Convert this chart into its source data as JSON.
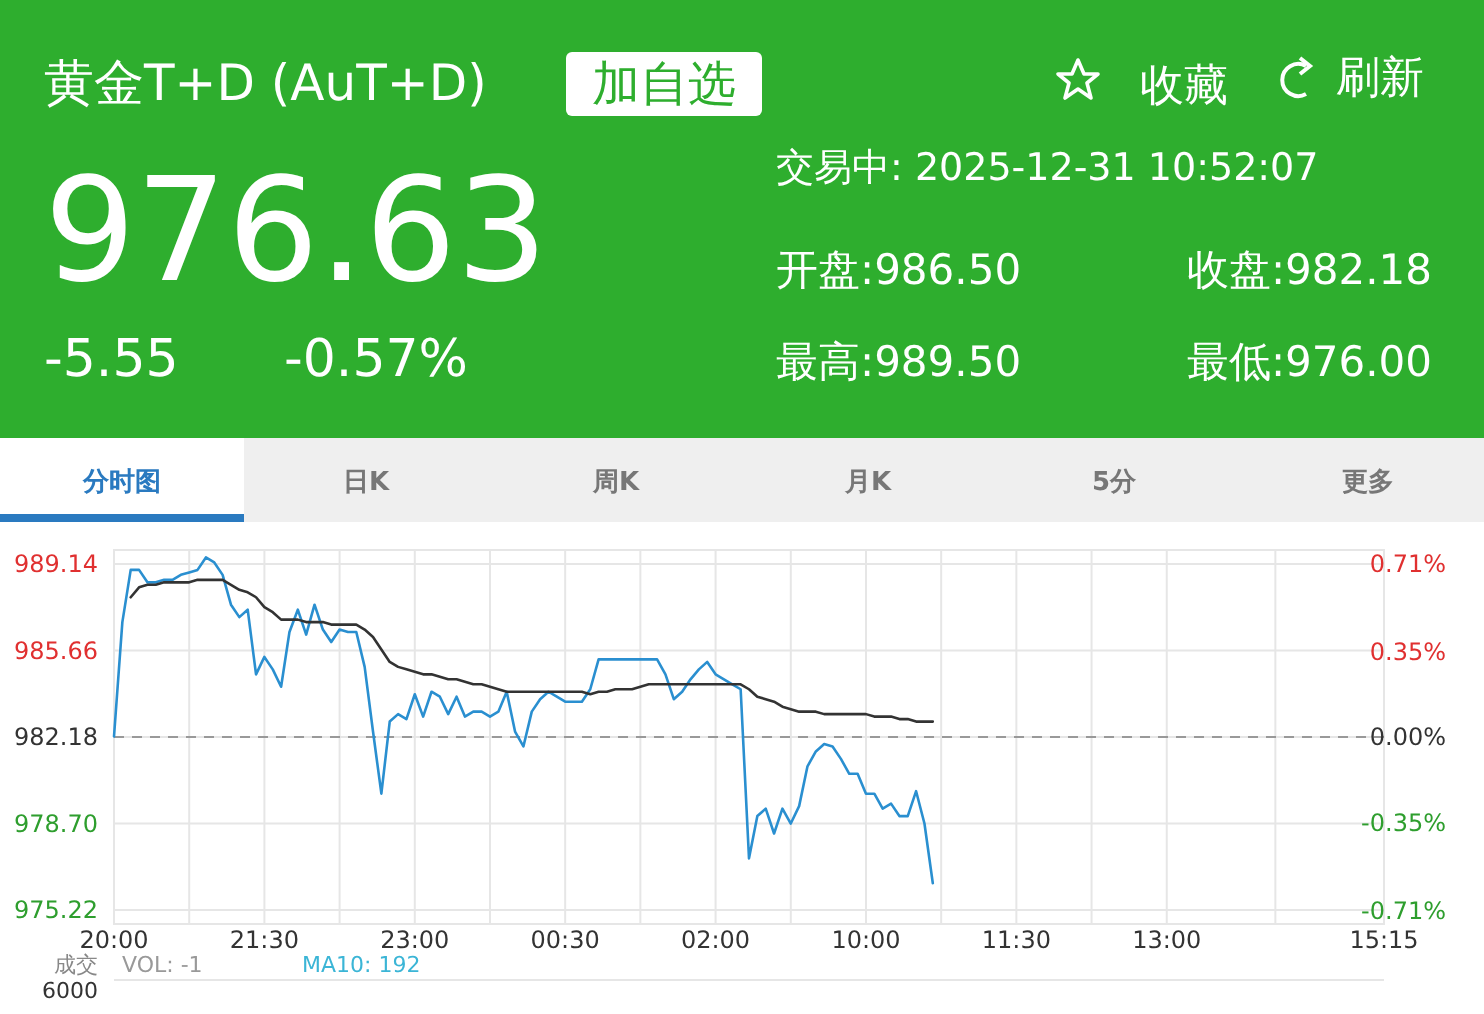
{
  "chart_data": {
    "type": "line",
    "title": "黄金T+D (AuT+D)",
    "annotations": [
      "976.63",
      "-5.55",
      "-0.57%",
      "加自选",
      "收藏",
      "刷新",
      "交易中:  2025-12-31 10:52:07",
      "开盘:986.50",
      "收盘:982.18",
      "最高:989.50",
      "最低:976.00",
      "分时图",
      "日K",
      "周K",
      "月K",
      "5分",
      "更多",
      "成交",
      "VOL: -1",
      "MA10: 192",
      "6000"
    ],
    "categories": [
      "20:00",
      null,
      null,
      null,
      null,
      null,
      null,
      null,
      null,
      null,
      null,
      null,
      null,
      null,
      null,
      null,
      null,
      null,
      "21:30",
      null,
      null,
      null,
      null,
      null,
      null,
      null,
      null,
      null,
      null,
      null,
      null,
      null,
      null,
      null,
      null,
      null,
      "23:00",
      null,
      null,
      null,
      null,
      null,
      null,
      null,
      null,
      null,
      null,
      null,
      null,
      null,
      null,
      null,
      null,
      null,
      "00:30",
      null,
      null,
      null,
      null,
      null,
      null,
      null,
      null,
      null,
      null,
      null,
      null,
      null,
      null,
      null,
      null,
      null,
      "02:00",
      null,
      null,
      null,
      null,
      null,
      null,
      null,
      null,
      null,
      null,
      null,
      null,
      null,
      null,
      null,
      null,
      null,
      "10:00",
      null,
      null,
      null,
      null,
      null,
      null,
      null,
      null,
      null,
      null,
      null,
      null,
      null,
      null,
      null,
      null,
      null,
      "11:30",
      null,
      null,
      null,
      null,
      null,
      null,
      null,
      null,
      null,
      null,
      null,
      null,
      null,
      null,
      null,
      null,
      null,
      "13:00",
      null,
      null,
      null,
      null,
      null,
      null,
      null,
      null,
      null,
      null,
      null,
      null,
      null,
      null,
      null,
      null,
      null,
      null,
      null,
      null,
      null,
      null,
      null,
      null,
      null,
      "15:15"
    ],
    "ylim": [
      974.66,
      989.7
    ],
    "yticks": [
      975.22,
      {
        "value": 978.7,
        "label": "978.70"
      },
      982.18,
      985.66,
      989.14
    ],
    "y2lim": [
      -0.766,
      0.766
    ],
    "y2ticks": [
      {
        "value": -0.71,
        "label": "-0.71%"
      },
      {
        "value": -0.35,
        "label": "-0.35%"
      },
      {
        "value": 0,
        "label": "0.00%"
      },
      {
        "value": 0.35,
        "label": "0.35%"
      },
      {
        "value": 0.71,
        "label": "0.71%"
      }
    ],
    "grid": true,
    "marker": "none",
    "line_style": "solid",
    "ref_lines": [
      {
        "axis": "y",
        "value": 982.18,
        "color": "#999999",
        "line_style": "dashed"
      }
    ],
    "series": [
      {
        "color": "#2a8fd0",
        "values": [
          982.2,
          986.8,
          988.9,
          988.9,
          988.4,
          988.4,
          988.5,
          988.5,
          988.7,
          988.8,
          988.9,
          989.4,
          989.2,
          988.7,
          987.5,
          987.0,
          987.3,
          984.7,
          985.4,
          984.9,
          984.2,
          986.4,
          987.3,
          986.3,
          987.5,
          986.5,
          986.0,
          986.5,
          986.4,
          986.4,
          985.0,
          982.4,
          979.9,
          982.8,
          983.1,
          982.9,
          983.9,
          983.0,
          984.0,
          983.8,
          983.1,
          983.8,
          983.0,
          983.2,
          983.2,
          983.0,
          983.2,
          984.0,
          982.4,
          981.8,
          983.2,
          983.7,
          984.0,
          983.8,
          983.6,
          983.6,
          983.6,
          984.1,
          985.3,
          985.3,
          985.3,
          985.3,
          985.3,
          985.3,
          985.3,
          985.3,
          984.7,
          983.7,
          984.0,
          984.5,
          984.9,
          985.2,
          984.7,
          984.5,
          984.3,
          984.1,
          977.3,
          979.0,
          979.3,
          978.3,
          979.3,
          978.7,
          979.4,
          981.0,
          981.6,
          981.9,
          981.8,
          981.3,
          980.7,
          980.7,
          979.9,
          979.9,
          979.3,
          979.5,
          979.0,
          979.0,
          980.0,
          978.7,
          976.3,
          null,
          null,
          null,
          null,
          null,
          null,
          null,
          null,
          null,
          null,
          null,
          null,
          null,
          null,
          null,
          null,
          null,
          null,
          null,
          null,
          null,
          null,
          null,
          null,
          null,
          null,
          null,
          null,
          null,
          null,
          null,
          null,
          null,
          null,
          null,
          null,
          null,
          null,
          null,
          null,
          null,
          null,
          null,
          null,
          null,
          null,
          null,
          null,
          null,
          null,
          null,
          null,
          null,
          null
        ]
      },
      {
        "color": "#333333",
        "values": [
          null,
          null,
          987.8,
          988.2,
          988.3,
          988.3,
          988.4,
          988.4,
          988.4,
          988.4,
          988.5,
          988.5,
          988.5,
          988.5,
          988.3,
          988.1,
          988.0,
          987.8,
          987.4,
          987.2,
          986.9,
          986.9,
          986.9,
          986.8,
          986.8,
          986.8,
          986.7,
          986.7,
          986.7,
          986.7,
          986.5,
          986.2,
          985.7,
          985.2,
          985.0,
          984.9,
          984.8,
          984.7,
          984.7,
          984.6,
          984.5,
          984.5,
          984.4,
          984.3,
          984.3,
          984.2,
          984.1,
          984.0,
          984.0,
          984.0,
          984.0,
          984.0,
          984.0,
          984.0,
          984.0,
          984.0,
          984.0,
          983.9,
          984.0,
          984.0,
          984.1,
          984.1,
          984.1,
          984.2,
          984.3,
          984.3,
          984.3,
          984.3,
          984.3,
          984.3,
          984.3,
          984.3,
          984.3,
          984.3,
          984.3,
          984.3,
          984.1,
          983.8,
          983.7,
          983.6,
          983.4,
          983.3,
          983.2,
          983.2,
          983.2,
          983.1,
          983.1,
          983.1,
          983.1,
          983.1,
          983.1,
          983.0,
          983.0,
          983.0,
          982.9,
          982.9,
          982.8,
          982.8,
          982.8,
          null,
          null,
          null,
          null,
          null,
          null,
          null,
          null,
          null,
          null,
          null,
          null,
          null,
          null,
          null,
          null,
          null,
          null,
          null,
          null,
          null,
          null,
          null,
          null,
          null,
          null,
          null,
          null,
          null,
          null,
          null,
          null,
          null,
          null,
          null,
          null,
          null,
          null,
          null,
          null,
          null,
          null,
          null,
          null,
          null,
          null,
          null,
          null,
          null,
          null,
          null,
          null,
          null,
          null
        ]
      }
    ]
  }
}
